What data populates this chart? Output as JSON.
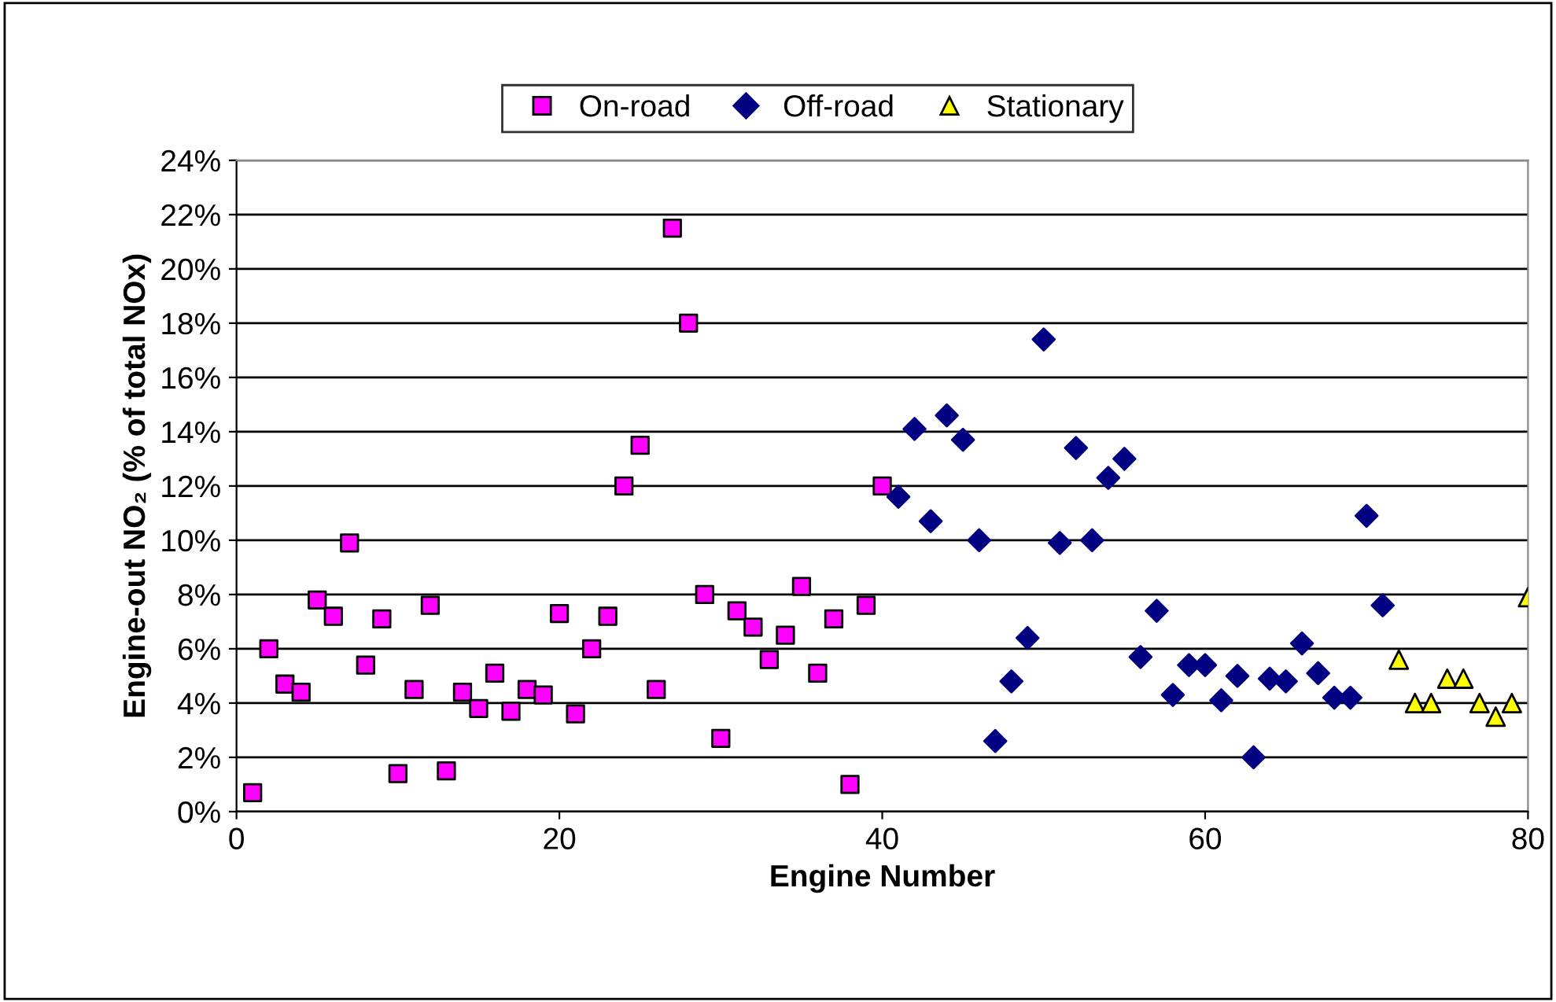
{
  "chart_data": {
    "type": "scatter",
    "xlabel": "Engine Number",
    "ylabel": "Engine-out NO₂ (% of total NOx)",
    "xlim": [
      0,
      80
    ],
    "xticks": [
      0,
      20,
      40,
      60,
      80
    ],
    "ylim": [
      0,
      24
    ],
    "yticks": [
      {
        "value": 0,
        "label": "0%"
      },
      {
        "value": 2,
        "label": "2%"
      },
      {
        "value": 4,
        "label": "4%"
      },
      {
        "value": 6,
        "label": "6%"
      },
      {
        "value": 8,
        "label": "8%"
      },
      {
        "value": 10,
        "label": "10%"
      },
      {
        "value": 12,
        "label": "12%"
      },
      {
        "value": 14,
        "label": "14%"
      },
      {
        "value": 16,
        "label": "16%"
      },
      {
        "value": 18,
        "label": "18%"
      },
      {
        "value": 20,
        "label": "20%"
      },
      {
        "value": 22,
        "label": "22%"
      },
      {
        "value": 24,
        "label": "24%"
      }
    ],
    "grid": "y",
    "legend": "top",
    "series": [
      {
        "name": "On-road",
        "color": "#ff00ff",
        "marker": "square",
        "x": [
          1,
          2,
          3,
          4,
          5,
          6,
          7,
          8,
          9,
          10,
          11,
          12,
          13,
          14,
          15,
          16,
          17,
          18,
          19,
          20,
          21,
          22,
          23,
          24,
          25,
          26,
          27,
          28,
          29,
          30,
          31,
          32,
          33,
          34,
          35,
          36,
          37,
          38,
          39,
          40
        ],
        "values": [
          0.7,
          6.0,
          4.7,
          4.4,
          7.8,
          7.2,
          9.9,
          5.4,
          7.1,
          1.4,
          4.5,
          7.6,
          1.5,
          4.4,
          3.8,
          5.1,
          3.7,
          4.5,
          4.3,
          7.3,
          3.6,
          6.0,
          7.2,
          12.0,
          13.5,
          4.5,
          21.5,
          18.0,
          8.0,
          2.7,
          7.4,
          6.8,
          5.6,
          6.5,
          8.3,
          5.1,
          7.1,
          1.0,
          7.6,
          12.0
        ]
      },
      {
        "name": "Off-road",
        "color": "#000080",
        "marker": "diamond",
        "x": [
          41,
          42,
          43,
          44,
          45,
          46,
          47,
          48,
          49,
          50,
          51,
          52,
          53,
          54,
          55,
          56,
          57,
          58,
          59,
          60,
          61,
          62,
          63,
          64,
          65,
          66,
          67,
          68,
          69,
          70,
          71
        ],
        "values": [
          11.6,
          14.1,
          10.7,
          14.6,
          13.7,
          10.0,
          2.6,
          4.8,
          6.4,
          17.4,
          9.9,
          13.4,
          10.0,
          12.3,
          13.0,
          5.7,
          7.4,
          4.3,
          5.4,
          5.4,
          4.1,
          5.0,
          2.0,
          4.9,
          4.8,
          6.2,
          5.1,
          4.2,
          4.2,
          10.9,
          7.6
        ]
      },
      {
        "name": "Stationary",
        "color": "#ffff00",
        "marker": "triangle",
        "x": [
          72,
          73,
          74,
          75,
          76,
          77,
          78,
          79,
          80
        ],
        "values": [
          5.6,
          4.0,
          4.0,
          4.9,
          4.9,
          4.0,
          3.5,
          4.0,
          7.9
        ]
      }
    ]
  }
}
